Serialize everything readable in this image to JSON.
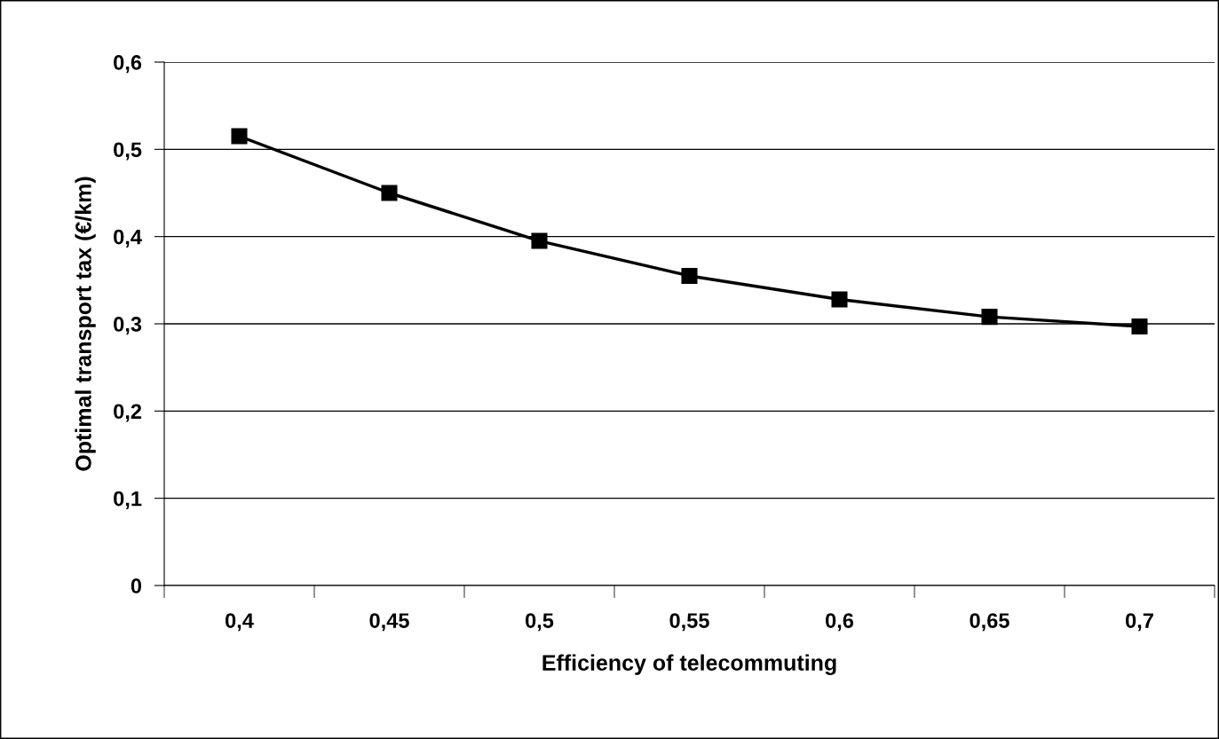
{
  "chart_data": {
    "type": "line",
    "xlabel": "Efficiency of telecommuting",
    "ylabel": "Optimal transport tax (€/km)",
    "categories": [
      "0,4",
      "0,45",
      "0,5",
      "0,55",
      "0,6",
      "0,65",
      "0,7"
    ],
    "series": [
      {
        "color": "#000000",
        "values": [
          0.515,
          0.45,
          0.395,
          0.355,
          0.328,
          0.308,
          0.297
        ]
      }
    ],
    "ylim": [
      0,
      0.6
    ],
    "yticks": [
      0,
      {
        "value": 0.1,
        "label": "0,1"
      },
      {
        "value": 0.2,
        "label": "0,2"
      },
      {
        "value": 0.3,
        "label": "0,3"
      },
      {
        "value": 0.4,
        "label": "0,4"
      },
      {
        "value": 0.5,
        "label": "0,5"
      },
      {
        "value": 0.6,
        "label": "0,6"
      }
    ],
    "grid": "y",
    "marker": "square",
    "line_style": "solid"
  }
}
